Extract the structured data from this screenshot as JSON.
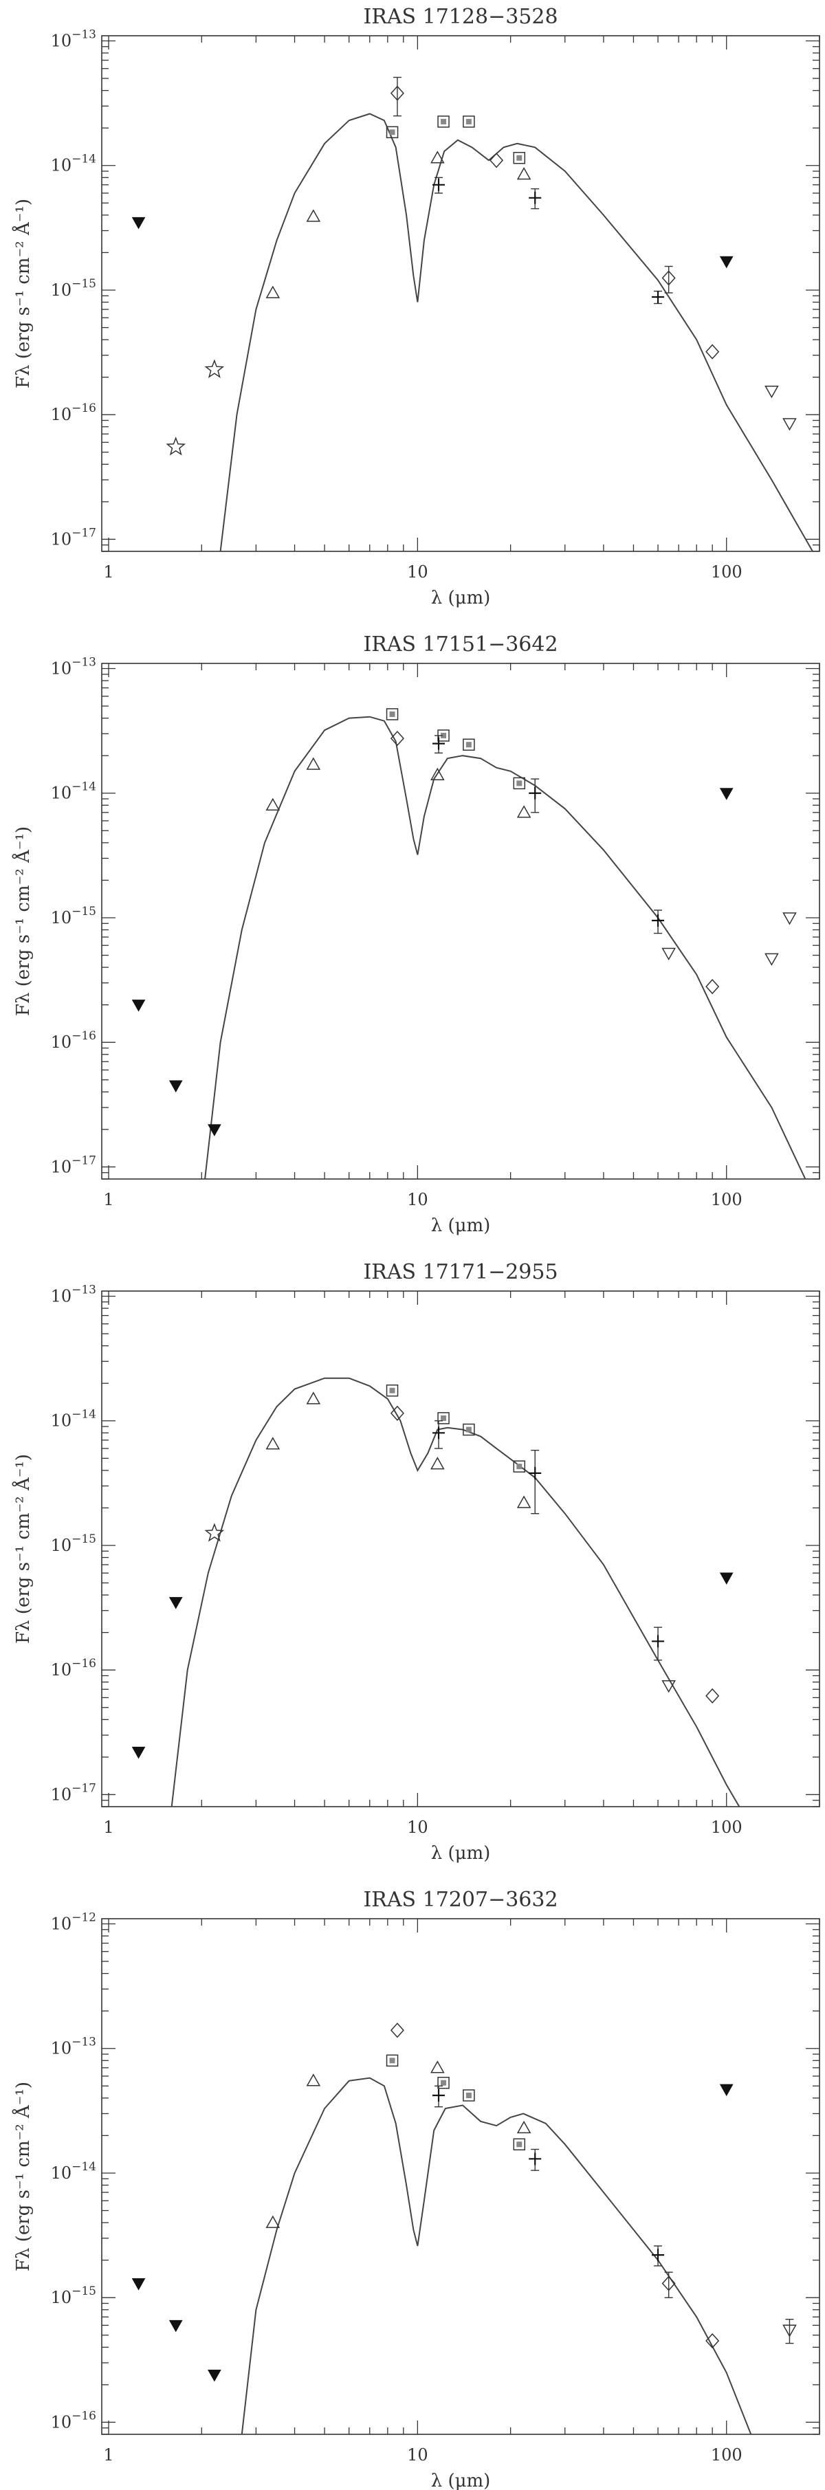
{
  "figure": {
    "panel_count": 4
  },
  "chart_data": [
    {
      "type": "scatter",
      "title": "IRAS 17128−3528",
      "xlabel": "λ (μm)",
      "ylabel": "Fλ (erg s⁻¹ cm⁻² Å⁻¹)",
      "xscale": "log",
      "yscale": "log",
      "xlim": [
        0.95,
        200
      ],
      "ylim": [
        8e-18,
        1.1e-13
      ],
      "x_ticks": [
        {
          "value": 1,
          "label": "1"
        },
        {
          "value": 10,
          "label": "10"
        },
        {
          "value": 100,
          "label": "100"
        }
      ],
      "y_ticks": [
        {
          "value": 1e-17,
          "base": "10",
          "exp": "−17"
        },
        {
          "value": 1e-16,
          "base": "10",
          "exp": "−16"
        },
        {
          "value": 1e-15,
          "base": "10",
          "exp": "−15"
        },
        {
          "value": 1e-14,
          "base": "10",
          "exp": "−14"
        },
        {
          "value": 1e-13,
          "base": "10",
          "exp": "−13"
        }
      ],
      "model_curve": {
        "x": [
          2.3,
          2.6,
          3,
          3.5,
          4,
          5,
          6,
          7,
          7.8,
          8.5,
          9.2,
          9.7,
          10,
          10.5,
          11.3,
          12.2,
          13.5,
          15,
          17,
          19,
          21,
          24,
          30,
          40,
          60,
          80,
          100,
          140,
          190
        ],
        "y": [
          8e-18,
          1e-16,
          7e-16,
          2.5e-15,
          6e-15,
          1.5e-14,
          2.3e-14,
          2.6e-14,
          2.3e-14,
          1.4e-14,
          4e-15,
          1.3e-15,
          8e-16,
          2.5e-15,
          7e-15,
          1.3e-14,
          1.6e-14,
          1.4e-14,
          1.1e-14,
          1.4e-14,
          1.5e-14,
          1.4e-14,
          9e-15,
          4e-15,
          1.2e-15,
          4e-16,
          1.2e-16,
          3e-17,
          8e-18
        ]
      },
      "series": [
        {
          "marker": "triangle-up",
          "x": [
            3.4,
            4.6,
            11.6,
            22.1
          ],
          "y": [
            9.5e-16,
            3.9e-15,
            1.15e-14,
            8.5e-15
          ]
        },
        {
          "marker": "square",
          "x": [
            8.28,
            12.13,
            14.65,
            21.34
          ],
          "y": [
            1.85e-14,
            2.25e-14,
            2.25e-14,
            1.15e-14
          ]
        },
        {
          "marker": "diamond",
          "x": [
            8.6,
            18,
            65,
            90
          ],
          "y": [
            3.8e-14,
            1.1e-14,
            1.25e-15,
            3.2e-16
          ],
          "yerr": [
            1.3e-14,
            0,
            3e-16,
            0
          ]
        },
        {
          "marker": "plus",
          "x": [
            11.7,
            24,
            60
          ],
          "y": [
            7e-15,
            5.5e-15,
            8.8e-16
          ],
          "yerr": [
            1e-15,
            1e-15,
            1e-16
          ]
        },
        {
          "marker": "filled-triangle-down",
          "x": [
            1.25,
            100
          ],
          "y": [
            3.5e-15,
            1.7e-15
          ]
        },
        {
          "marker": "triangle-down",
          "x": [
            140,
            160
          ],
          "y": [
            1.55e-16,
            8.5e-17
          ]
        },
        {
          "marker": "star",
          "x": [
            1.65,
            2.2
          ],
          "y": [
            5.5e-17,
            2.3e-16
          ]
        }
      ]
    },
    {
      "type": "scatter",
      "title": "IRAS 17151−3642",
      "xlabel": "λ (μm)",
      "ylabel": "Fλ (erg s⁻¹ cm⁻² Å⁻¹)",
      "xscale": "log",
      "yscale": "log",
      "xlim": [
        0.95,
        200
      ],
      "ylim": [
        8e-18,
        1.1e-13
      ],
      "x_ticks": [
        {
          "value": 1,
          "label": "1"
        },
        {
          "value": 10,
          "label": "10"
        },
        {
          "value": 100,
          "label": "100"
        }
      ],
      "y_ticks": [
        {
          "value": 1e-17,
          "base": "10",
          "exp": "−17"
        },
        {
          "value": 1e-16,
          "base": "10",
          "exp": "−16"
        },
        {
          "value": 1e-15,
          "base": "10",
          "exp": "−15"
        },
        {
          "value": 1e-14,
          "base": "10",
          "exp": "−14"
        },
        {
          "value": 1e-13,
          "base": "10",
          "exp": "−13"
        }
      ],
      "model_curve": {
        "x": [
          2.05,
          2.3,
          2.7,
          3.2,
          4,
          5,
          6,
          7,
          7.8,
          8.5,
          9.2,
          9.7,
          10,
          10.5,
          11.3,
          12.5,
          14,
          16,
          18,
          20,
          24,
          30,
          40,
          60,
          80,
          100,
          140,
          180
        ],
        "y": [
          8e-18,
          1e-16,
          8e-16,
          4e-15,
          1.5e-14,
          3.2e-14,
          4e-14,
          4.1e-14,
          3.8e-14,
          2.6e-14,
          9e-15,
          4.3e-15,
          3.2e-15,
          6.5e-15,
          1.3e-14,
          1.9e-14,
          2e-14,
          1.9e-14,
          1.6e-14,
          1.5e-14,
          1.15e-14,
          7.5e-15,
          3.5e-15,
          1e-15,
          3.5e-16,
          1.1e-16,
          3e-17,
          8e-18
        ]
      },
      "series": [
        {
          "marker": "triangle-up",
          "x": [
            3.4,
            4.6,
            11.6,
            22.1
          ],
          "y": [
            8e-15,
            1.7e-14,
            1.4e-14,
            7e-15
          ]
        },
        {
          "marker": "square",
          "x": [
            8.28,
            12.13,
            14.65,
            21.34
          ],
          "y": [
            4.3e-14,
            2.9e-14,
            2.45e-14,
            1.2e-14
          ]
        },
        {
          "marker": "diamond",
          "x": [
            8.6,
            90
          ],
          "y": [
            2.75e-14,
            2.8e-16
          ]
        },
        {
          "marker": "plus",
          "x": [
            11.7,
            24,
            60
          ],
          "y": [
            2.5e-14,
            1e-14,
            9.5e-16
          ],
          "yerr": [
            4e-15,
            3e-15,
            2e-16
          ]
        },
        {
          "marker": "filled-triangle-down",
          "x": [
            1.25,
            1.65,
            2.2,
            100
          ],
          "y": [
            2e-16,
            4.5e-17,
            2e-17,
            1e-14
          ]
        },
        {
          "marker": "triangle-down",
          "x": [
            65,
            140,
            160
          ],
          "y": [
            5.2e-16,
            4.7e-16,
            1e-15
          ]
        }
      ]
    },
    {
      "type": "scatter",
      "title": "IRAS 17171−2955",
      "xlabel": "λ (μm)",
      "ylabel": "Fλ (erg s⁻¹ cm⁻² Å⁻¹)",
      "xscale": "log",
      "yscale": "log",
      "xlim": [
        0.95,
        200
      ],
      "ylim": [
        8e-18,
        1.1e-13
      ],
      "x_ticks": [
        {
          "value": 1,
          "label": "1"
        },
        {
          "value": 10,
          "label": "10"
        },
        {
          "value": 100,
          "label": "100"
        }
      ],
      "y_ticks": [
        {
          "value": 1e-17,
          "base": "10",
          "exp": "−17"
        },
        {
          "value": 1e-16,
          "base": "10",
          "exp": "−16"
        },
        {
          "value": 1e-15,
          "base": "10",
          "exp": "−15"
        },
        {
          "value": 1e-14,
          "base": "10",
          "exp": "−14"
        },
        {
          "value": 1e-13,
          "base": "10",
          "exp": "−13"
        }
      ],
      "model_curve": {
        "x": [
          1.6,
          1.8,
          2.1,
          2.5,
          3,
          3.5,
          4,
          5,
          6,
          7,
          8,
          8.8,
          9.5,
          10,
          10.8,
          11.6,
          12.5,
          14,
          16,
          18,
          21,
          24,
          30,
          40,
          60,
          80,
          100,
          110
        ],
        "y": [
          8e-18,
          1e-16,
          6e-16,
          2.5e-15,
          7e-15,
          1.3e-14,
          1.8e-14,
          2.2e-14,
          2.2e-14,
          1.9e-14,
          1.5e-14,
          1e-14,
          5.5e-15,
          4e-15,
          5.5e-15,
          8.5e-15,
          8.8e-15,
          8.5e-15,
          7.5e-15,
          6e-15,
          4.5e-15,
          3.5e-15,
          1.8e-15,
          7e-16,
          1.2e-16,
          3.5e-17,
          1.2e-17,
          8e-18
        ]
      },
      "series": [
        {
          "marker": "triangle-up",
          "x": [
            3.4,
            4.6,
            11.6,
            22.1
          ],
          "y": [
            6.5e-15,
            1.5e-14,
            4.5e-15,
            2.2e-15
          ]
        },
        {
          "marker": "square",
          "x": [
            8.28,
            12.13,
            14.65,
            21.34
          ],
          "y": [
            1.75e-14,
            1.05e-14,
            8.5e-15,
            4.3e-15
          ]
        },
        {
          "marker": "diamond",
          "x": [
            8.6,
            90
          ],
          "y": [
            1.15e-14,
            6.2e-17
          ]
        },
        {
          "marker": "plus",
          "x": [
            11.7,
            24,
            60
          ],
          "y": [
            8e-15,
            3.8e-15,
            1.7e-16
          ],
          "yerr": [
            2e-15,
            2e-15,
            5e-17
          ]
        },
        {
          "marker": "filled-triangle-down",
          "x": [
            1.25,
            1.65,
            100
          ],
          "y": [
            2.2e-17,
            3.5e-16,
            5.5e-16
          ]
        },
        {
          "marker": "triangle-down",
          "x": [
            65
          ],
          "y": [
            7.5e-17
          ]
        },
        {
          "marker": "star",
          "x": [
            2.2
          ],
          "y": [
            1.25e-15
          ]
        }
      ]
    },
    {
      "type": "scatter",
      "title": "IRAS 17207−3632",
      "xlabel": "λ (μm)",
      "ylabel": "Fλ (erg s⁻¹ cm⁻² Å⁻¹)",
      "xscale": "log",
      "yscale": "log",
      "xlim": [
        0.95,
        200
      ],
      "ylim": [
        8e-17,
        1.1e-12
      ],
      "x_ticks": [
        {
          "value": 1,
          "label": "1"
        },
        {
          "value": 10,
          "label": "10"
        },
        {
          "value": 100,
          "label": "100"
        }
      ],
      "y_ticks": [
        {
          "value": 1e-16,
          "base": "10",
          "exp": "−16"
        },
        {
          "value": 1e-15,
          "base": "10",
          "exp": "−15"
        },
        {
          "value": 1e-14,
          "base": "10",
          "exp": "−14"
        },
        {
          "value": 1e-13,
          "base": "10",
          "exp": "−13"
        },
        {
          "value": 1e-12,
          "base": "10",
          "exp": "−12"
        }
      ],
      "model_curve": {
        "x": [
          2.7,
          3,
          3.5,
          4,
          5,
          6,
          7,
          7.8,
          8.5,
          9.2,
          9.7,
          10,
          10.5,
          11.3,
          12.3,
          14,
          16,
          18,
          20,
          22,
          26,
          30,
          40,
          60,
          80,
          100,
          120
        ],
        "y": [
          8e-17,
          8e-16,
          3.5e-15,
          1e-14,
          3.3e-14,
          5.5e-14,
          5.8e-14,
          5e-14,
          2.5e-14,
          8e-15,
          3.5e-15,
          2.6e-15,
          6e-15,
          2.2e-14,
          3.3e-14,
          3.5e-14,
          2.6e-14,
          2.4e-14,
          2.8e-14,
          3e-14,
          2.5e-14,
          1.7e-14,
          7e-15,
          2e-15,
          7e-16,
          2.5e-16,
          8e-17
        ]
      },
      "series": [
        {
          "marker": "triangle-up",
          "x": [
            3.4,
            4.6,
            11.6,
            22.1
          ],
          "y": [
            4e-15,
            5.5e-14,
            7e-14,
            2.3e-14
          ]
        },
        {
          "marker": "square",
          "x": [
            8.28,
            12.13,
            14.65,
            21.34
          ],
          "y": [
            8e-14,
            5.3e-14,
            4.2e-14,
            1.7e-14
          ]
        },
        {
          "marker": "diamond",
          "x": [
            8.6,
            65,
            90
          ],
          "y": [
            1.4e-13,
            1.3e-15,
            4.5e-16
          ],
          "yerr": [
            0,
            3e-16,
            0
          ]
        },
        {
          "marker": "plus",
          "x": [
            11.7,
            24,
            60
          ],
          "y": [
            4.2e-14,
            1.3e-14,
            2.2e-15
          ],
          "yerr": [
            8e-15,
            2.5e-15,
            4e-16
          ]
        },
        {
          "marker": "filled-triangle-down",
          "x": [
            1.25,
            1.65,
            2.2,
            100
          ],
          "y": [
            1.3e-15,
            6e-16,
            2.4e-16,
            4.7e-14
          ]
        },
        {
          "marker": "triangle-down",
          "x": [
            160
          ],
          "y": [
            5.5e-16
          ],
          "yerr": [
            1.2e-16
          ]
        }
      ]
    }
  ]
}
